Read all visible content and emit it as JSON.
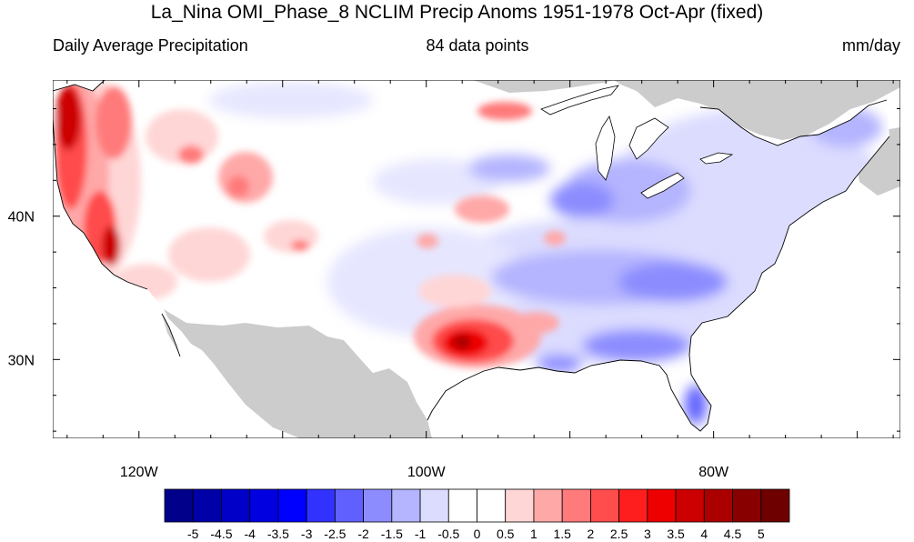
{
  "header": {
    "title": "La_Nina OMI_Phase_8 NCLIM Precip Anoms 1951-1978 Oct-Apr (fixed)",
    "left_label": "Daily Average Precipitation",
    "center_label": "84 data points",
    "right_label": "mm/day"
  },
  "map": {
    "region": "Contiguous United States",
    "lon_range": [
      -126,
      -67
    ],
    "lat_range": [
      24.5,
      49.5
    ],
    "x_ticks": [
      {
        "lon": -120,
        "label": "120W"
      },
      {
        "lon": -100,
        "label": "100W"
      },
      {
        "lon": -80,
        "label": "80W"
      }
    ],
    "y_ticks": [
      {
        "lat": 40,
        "label": "40N"
      },
      {
        "lat": 30,
        "label": "30N"
      }
    ],
    "land_mask_color": "#cccccc",
    "anomaly_regions": [
      {
        "name": "Pacific Northwest coast",
        "level": 4.5
      },
      {
        "name": "Northern California coast",
        "level": 3.5
      },
      {
        "name": "Cascades / Sierra foothills",
        "level": 1.5
      },
      {
        "name": "Northern Rockies",
        "level": 1.5
      },
      {
        "name": "Colorado Rockies",
        "level": 1.0
      },
      {
        "name": "Central Texas",
        "level": 3.5
      },
      {
        "name": "Oklahoma / Kansas band",
        "level": 1.0
      },
      {
        "name": "Upper Michigan",
        "level": 1.0
      },
      {
        "name": "Great Lakes / Ohio Valley",
        "level": -1.5
      },
      {
        "name": "Tennessee Valley / Carolinas",
        "level": -2.0
      },
      {
        "name": "Gulf Coast",
        "level": -2.0
      },
      {
        "name": "South Florida",
        "level": -2.5
      },
      {
        "name": "New England",
        "level": -1.0
      },
      {
        "name": "Southwest / Southern Plains",
        "level": -0.5
      }
    ]
  },
  "colorbar": {
    "labels": [
      "-5",
      "-4.5",
      "-4",
      "-3.5",
      "-3",
      "-2.5",
      "-2",
      "-1.5",
      "-1",
      "-0.5",
      "0",
      "0.5",
      "1",
      "1.5",
      "2",
      "2.5",
      "3",
      "3.5",
      "4",
      "4.5",
      "5"
    ],
    "colors": [
      "#00008b",
      "#0000a8",
      "#0000c8",
      "#0000e0",
      "#0000ff",
      "#3232ff",
      "#6060ff",
      "#8c8cff",
      "#b4b4ff",
      "#dcdcff",
      "#ffffff",
      "#ffffff",
      "#ffd6d6",
      "#ffa8a8",
      "#ff7a7a",
      "#ff4c4c",
      "#ff1e1e",
      "#ee0000",
      "#cc0000",
      "#aa0000",
      "#880000",
      "#6e0000"
    ]
  }
}
